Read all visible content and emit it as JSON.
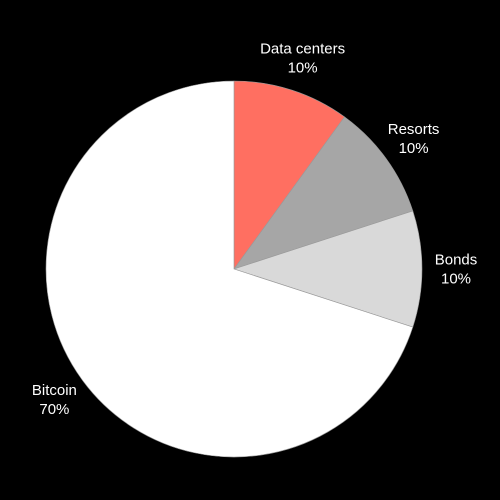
{
  "chart_data": {
    "type": "pie",
    "title": "",
    "start_angle_deg": 90,
    "direction": "clockwise",
    "slices": [
      {
        "label": "Data centers",
        "value": 10,
        "value_label": "10%",
        "color": "#ff6f61"
      },
      {
        "label": "Resorts",
        "value": 10,
        "value_label": "10%",
        "color": "#a6a6a6"
      },
      {
        "label": "Bonds",
        "value": 10,
        "value_label": "10%",
        "color": "#d9d9d9"
      },
      {
        "label": "Bitcoin",
        "value": 70,
        "value_label": "70%",
        "color": "#ffffff"
      }
    ]
  }
}
